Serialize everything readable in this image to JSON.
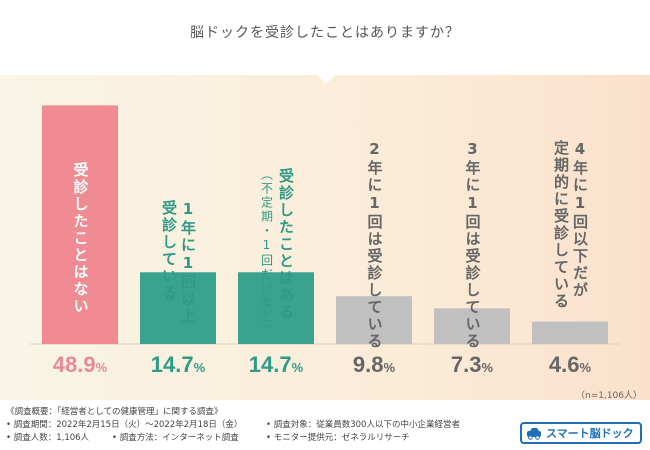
{
  "question": "脳ドックを受診したことはありますか？",
  "sample_note": "（n=1,106人）",
  "colors": {
    "pink": "#f08a93",
    "teal": "#3aa38e",
    "gray": "#c0c0c0",
    "pink_text": "#e88a95",
    "teal_text": "#2f9a86",
    "gray_text": "#666666"
  },
  "chart_data": {
    "type": "bar",
    "title": "脳ドックを受診したことはありますか？",
    "categories": [
      "受診したことはない",
      "1年に1回以上受診している",
      "受診したことはある（不定期・1回だけなど）",
      "2年に1回は受診している",
      "3年に1回は受診している",
      "4年に1回以下だが定期的に受診している"
    ],
    "values": [
      48.9,
      14.7,
      14.7,
      9.8,
      7.3,
      4.6
    ],
    "unit": "%",
    "ylim": [
      0,
      50
    ],
    "xlabel": "",
    "ylabel": ""
  },
  "bars": [
    {
      "lines": [
        "受診したことはない"
      ],
      "sub": "",
      "pct": "48.9",
      "unit": "%",
      "color": "pink",
      "text": "pink_text",
      "label_color": "#ffffff"
    },
    {
      "lines": [
        "1年に1回以上",
        "受診している"
      ],
      "sub": "",
      "pct": "14.7",
      "unit": "%",
      "color": "teal",
      "text": "teal_text",
      "label_color": "#2f9a86"
    },
    {
      "lines": [
        "受診したことはある"
      ],
      "sub": "（不定期・1回だけなど）",
      "pct": "14.7",
      "unit": "%",
      "color": "teal",
      "text": "teal_text",
      "label_color": "#2f9a86"
    },
    {
      "lines": [
        "2年に1回は受診している"
      ],
      "sub": "",
      "pct": "9.8",
      "unit": "%",
      "color": "gray",
      "text": "gray_text",
      "label_color": "#666666"
    },
    {
      "lines": [
        "3年に1回は受診している"
      ],
      "sub": "",
      "pct": "7.3",
      "unit": "%",
      "color": "gray",
      "text": "gray_text",
      "label_color": "#666666"
    },
    {
      "lines": [
        "4年に1回以下だが",
        "定期的に受診している"
      ],
      "sub": "",
      "pct": "4.6",
      "unit": "%",
      "color": "gray",
      "text": "gray_text",
      "label_color": "#666666"
    }
  ],
  "footer": {
    "survey_title": "《調査概要：「経営者としての健康管理」に関する調査》",
    "period": "• 調査期間：2022年2月15日（火）〜2022年2月18日（金）",
    "target": "• 調査対象：従業員数300人以下の中小企業経営者",
    "count": "• 調査人数：1,106人",
    "method": "• 調査方法：インターネット調査",
    "provider": "• モニター提供元：ゼネラルリサーチ",
    "logo_text": "スマート脳ドック"
  }
}
